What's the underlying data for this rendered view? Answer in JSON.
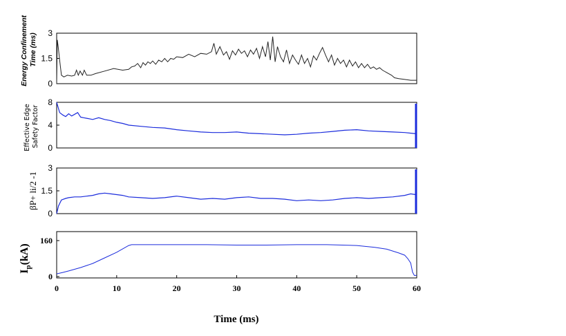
{
  "colors": {
    "black_trace": "#222222",
    "blue_trace": "#1a2bdc",
    "frame": "#000000"
  },
  "chart_data": [
    {
      "type": "line",
      "ylabel": "Energy Confinement Time (ms)",
      "ylabel_lines": [
        "Energy Confinement",
        "Time (ms)"
      ],
      "ylim": [
        0,
        3
      ],
      "yticks": [
        0,
        1.5,
        3
      ],
      "ytick_labels": [
        "0",
        "1.5",
        "3"
      ],
      "xlim": [
        0,
        60
      ],
      "series": [
        {
          "color": "#222222",
          "x": [
            0,
            0.1,
            0.25,
            0.5,
            0.8,
            1.2,
            1.8,
            2.5,
            3.0,
            3.3,
            3.6,
            3.9,
            4.3,
            4.6,
            5.0,
            5.3,
            5.7,
            6.5,
            8,
            9.5,
            11,
            12,
            12.5,
            13,
            13.5,
            14,
            14.4,
            14.8,
            15.2,
            15.6,
            16,
            16.5,
            17,
            17.5,
            18,
            18.5,
            19,
            19.5,
            20,
            21,
            22,
            23,
            24,
            25,
            25.8,
            26.2,
            26.6,
            27.2,
            27.8,
            28.3,
            28.8,
            29.3,
            29.8,
            30.3,
            30.8,
            31.3,
            31.8,
            32.3,
            32.8,
            33.3,
            33.8,
            34.3,
            34.8,
            35.2,
            35.6,
            36.0,
            36.4,
            36.8,
            37.3,
            37.8,
            38.3,
            38.8,
            39.3,
            39.8,
            40.3,
            40.8,
            41.3,
            41.8,
            42.3,
            42.8,
            43.3,
            43.8,
            44.3,
            44.8,
            45.3,
            45.8,
            46.3,
            46.8,
            47.3,
            47.8,
            48.3,
            48.8,
            49.3,
            49.8,
            50.3,
            50.8,
            51.3,
            51.8,
            52.3,
            52.8,
            53.3,
            53.8,
            54.3,
            54.8,
            55.3,
            55.8,
            56.3,
            57,
            58,
            59,
            60
          ],
          "y": [
            0.0,
            2.6,
            2.2,
            1.4,
            0.5,
            0.4,
            0.5,
            0.45,
            0.5,
            0.8,
            0.5,
            0.75,
            0.5,
            0.8,
            0.5,
            0.5,
            0.5,
            0.6,
            0.75,
            0.9,
            0.8,
            0.85,
            1.0,
            1.05,
            1.2,
            0.95,
            1.25,
            1.1,
            1.3,
            1.2,
            1.35,
            1.15,
            1.4,
            1.3,
            1.5,
            1.3,
            1.5,
            1.45,
            1.6,
            1.55,
            1.75,
            1.6,
            1.8,
            1.75,
            1.9,
            2.4,
            1.75,
            2.2,
            1.7,
            1.9,
            1.45,
            1.95,
            1.7,
            2.05,
            1.8,
            1.95,
            1.6,
            2.0,
            1.75,
            2.1,
            1.5,
            2.2,
            1.6,
            2.5,
            1.4,
            2.8,
            1.3,
            2.2,
            1.6,
            1.3,
            2.0,
            1.2,
            1.7,
            1.4,
            1.15,
            1.7,
            1.2,
            1.5,
            1.0,
            1.65,
            1.4,
            1.8,
            2.15,
            1.7,
            1.3,
            1.7,
            1.1,
            1.5,
            1.2,
            1.4,
            1.0,
            1.4,
            1.05,
            1.3,
            0.95,
            1.2,
            0.95,
            1.15,
            0.9,
            1.0,
            0.85,
            0.95,
            0.8,
            0.7,
            0.6,
            0.5,
            0.35,
            0.3,
            0.25,
            0.2,
            0.2
          ]
        }
      ]
    },
    {
      "type": "line",
      "ylabel": "Effective Edge Safety Factor",
      "ylabel_lines": [
        "Effective Edge",
        "Safety Factor"
      ],
      "ylim": [
        0,
        8
      ],
      "yticks": [
        0,
        4,
        8
      ],
      "ytick_labels": [
        "0",
        "4",
        "8"
      ],
      "xlim": [
        0,
        60
      ],
      "series": [
        {
          "color": "#1a2bdc",
          "x": [
            0,
            0.5,
            1,
            1.5,
            2,
            2.5,
            3,
            3.5,
            4,
            4.5,
            5,
            6,
            7,
            8,
            9,
            10,
            11,
            12,
            14,
            16,
            18,
            20,
            22,
            24,
            26,
            28,
            30,
            32,
            34,
            36,
            38,
            40,
            42,
            44,
            46,
            48,
            50,
            52,
            54,
            56,
            58,
            59,
            59.8
          ],
          "y": [
            8.0,
            6.2,
            5.8,
            5.5,
            6.0,
            5.6,
            5.9,
            6.2,
            5.4,
            5.3,
            5.2,
            5.0,
            5.3,
            5.0,
            4.8,
            4.5,
            4.3,
            4.0,
            3.8,
            3.6,
            3.5,
            3.2,
            3.0,
            2.8,
            2.7,
            2.7,
            2.8,
            2.6,
            2.5,
            2.4,
            2.3,
            2.4,
            2.6,
            2.7,
            2.9,
            3.1,
            3.2,
            3.0,
            2.9,
            2.8,
            2.7,
            2.6,
            2.5
          ]
        }
      ]
    },
    {
      "type": "line",
      "ylabel": "βP+ li/2 -1",
      "ylim": [
        0,
        3
      ],
      "yticks": [
        0,
        1.5,
        3
      ],
      "ytick_labels": [
        "0",
        "1.5",
        "3"
      ],
      "xlim": [
        0,
        60
      ],
      "series": [
        {
          "color": "#1a2bdc",
          "x": [
            0,
            0.3,
            0.8,
            1.5,
            2,
            3,
            4,
            5,
            6,
            7,
            8,
            9,
            10,
            11,
            12,
            14,
            16,
            18,
            20,
            22,
            24,
            26,
            28,
            30,
            32,
            34,
            36,
            38,
            40,
            42,
            44,
            46,
            48,
            50,
            52,
            54,
            56,
            58,
            59,
            59.8
          ],
          "y": [
            0.0,
            0.5,
            0.9,
            1.0,
            1.05,
            1.1,
            1.1,
            1.15,
            1.2,
            1.3,
            1.35,
            1.3,
            1.25,
            1.2,
            1.1,
            1.05,
            1.0,
            1.05,
            1.15,
            1.05,
            0.95,
            1.0,
            0.95,
            1.05,
            1.1,
            1.0,
            1.0,
            0.95,
            0.85,
            0.9,
            0.85,
            0.9,
            1.0,
            1.05,
            1.0,
            1.05,
            1.1,
            1.2,
            1.3,
            1.25
          ]
        }
      ]
    },
    {
      "type": "line",
      "ylabel": "Ip(kA)",
      "ylabel_main": "I",
      "ylabel_sub": "p",
      "ylabel_rest": "(kA)",
      "ylim": [
        0,
        160
      ],
      "yticks": [
        0,
        160
      ],
      "ytick_labels": [
        "0",
        "160"
      ],
      "xlim": [
        0,
        60
      ],
      "xticks": [
        0,
        10,
        20,
        30,
        40,
        50,
        60
      ],
      "xtick_labels": [
        "0",
        "10",
        "20",
        "30",
        "40",
        "50",
        "60"
      ],
      "xlabel": "Time (ms)",
      "series": [
        {
          "color": "#1a2bdc",
          "x": [
            0,
            1,
            2,
            4,
            6,
            8,
            10,
            12,
            12.5,
            15,
            20,
            25,
            30,
            35,
            40,
            45,
            50,
            53,
            55,
            57,
            58,
            58.5,
            59,
            59.3,
            59.6,
            60
          ],
          "y": [
            12,
            18,
            25,
            40,
            58,
            83,
            108,
            138,
            142,
            142,
            142,
            142,
            140,
            140,
            142,
            142,
            138,
            130,
            122,
            105,
            95,
            80,
            60,
            20,
            5,
            5
          ]
        }
      ]
    }
  ]
}
